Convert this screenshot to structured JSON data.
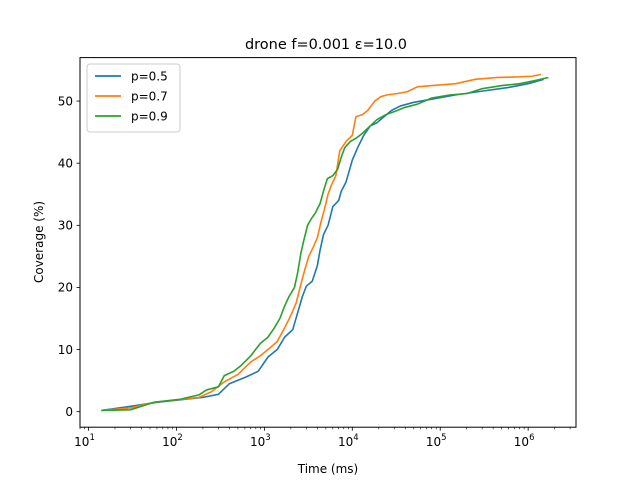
{
  "chart_data": {
    "type": "line",
    "title": "drone f=0.001 ε=10.0",
    "xlabel": "Time (ms)",
    "ylabel": "Coverage (%)",
    "xscale": "log",
    "xlim": [
      8,
      3500000
    ],
    "ylim": [
      -2.5,
      57
    ],
    "xticks": [
      {
        "value": 10,
        "base": "10",
        "exp": "1"
      },
      {
        "value": 100,
        "base": "10",
        "exp": "2"
      },
      {
        "value": 1000,
        "base": "10",
        "exp": "3"
      },
      {
        "value": 10000,
        "base": "10",
        "exp": "4"
      },
      {
        "value": 100000,
        "base": "10",
        "exp": "5"
      },
      {
        "value": 1000000,
        "base": "10",
        "exp": "6"
      }
    ],
    "yticks": [
      0,
      10,
      20,
      30,
      40,
      50
    ],
    "grid": false,
    "legend_position": "upper-left",
    "series": [
      {
        "name": "p=0.5",
        "color": "#1f77b4",
        "points": [
          [
            14,
            0.2
          ],
          [
            20,
            0.5
          ],
          [
            35,
            1.0
          ],
          [
            60,
            1.5
          ],
          [
            110,
            1.9
          ],
          [
            200,
            2.3
          ],
          [
            300,
            2.8
          ],
          [
            400,
            4.5
          ],
          [
            600,
            5.5
          ],
          [
            850,
            6.5
          ],
          [
            1100,
            8.8
          ],
          [
            1400,
            10.0
          ],
          [
            1700,
            12.0
          ],
          [
            2100,
            13.2
          ],
          [
            2400,
            16.0
          ],
          [
            2700,
            18.5
          ],
          [
            3000,
            20.2
          ],
          [
            3500,
            21.0
          ],
          [
            4000,
            23.5
          ],
          [
            4300,
            26.0
          ],
          [
            4700,
            28.5
          ],
          [
            5300,
            30.0
          ],
          [
            6000,
            33.0
          ],
          [
            7000,
            34.0
          ],
          [
            7500,
            35.5
          ],
          [
            8500,
            37.0
          ],
          [
            10000,
            40.5
          ],
          [
            11500,
            42.5
          ],
          [
            13500,
            44.5
          ],
          [
            16000,
            46.0
          ],
          [
            19000,
            46.5
          ],
          [
            23000,
            47.5
          ],
          [
            28000,
            48.5
          ],
          [
            35000,
            49.2
          ],
          [
            50000,
            49.8
          ],
          [
            80000,
            50.3
          ],
          [
            150000,
            51.0
          ],
          [
            300000,
            51.6
          ],
          [
            600000,
            52.2
          ],
          [
            1000000,
            52.8
          ],
          [
            1500000,
            53.5
          ]
        ]
      },
      {
        "name": "p=0.7",
        "color": "#ff7f0e",
        "points": [
          [
            14,
            0.2
          ],
          [
            30,
            0.6
          ],
          [
            55,
            1.5
          ],
          [
            100,
            1.9
          ],
          [
            180,
            2.3
          ],
          [
            250,
            3.2
          ],
          [
            350,
            4.8
          ],
          [
            500,
            6.0
          ],
          [
            700,
            8.0
          ],
          [
            900,
            9.0
          ],
          [
            1100,
            10.0
          ],
          [
            1400,
            11.3
          ],
          [
            1700,
            13.5
          ],
          [
            2000,
            15.5
          ],
          [
            2300,
            17.5
          ],
          [
            2600,
            20.5
          ],
          [
            2900,
            23.0
          ],
          [
            3200,
            25.0
          ],
          [
            3600,
            26.5
          ],
          [
            4000,
            28.0
          ],
          [
            4400,
            30.5
          ],
          [
            4800,
            32.5
          ],
          [
            5300,
            35.0
          ],
          [
            5800,
            36.5
          ],
          [
            6500,
            38.0
          ],
          [
            7200,
            42.0
          ],
          [
            8500,
            43.5
          ],
          [
            10000,
            44.5
          ],
          [
            11000,
            47.5
          ],
          [
            13000,
            47.8
          ],
          [
            15000,
            48.5
          ],
          [
            18000,
            50.0
          ],
          [
            21000,
            50.7
          ],
          [
            25000,
            51.0
          ],
          [
            32000,
            51.2
          ],
          [
            42000,
            51.5
          ],
          [
            55000,
            52.3
          ],
          [
            80000,
            52.5
          ],
          [
            150000,
            52.8
          ],
          [
            250000,
            53.5
          ],
          [
            450000,
            53.8
          ],
          [
            800000,
            53.9
          ],
          [
            1100000,
            54.0
          ],
          [
            1400000,
            54.3
          ]
        ]
      },
      {
        "name": "p=0.9",
        "color": "#2ca02c",
        "points": [
          [
            14,
            0.2
          ],
          [
            30,
            0.3
          ],
          [
            55,
            1.5
          ],
          [
            110,
            2.0
          ],
          [
            180,
            2.7
          ],
          [
            220,
            3.5
          ],
          [
            300,
            4.0
          ],
          [
            350,
            5.8
          ],
          [
            450,
            6.5
          ],
          [
            550,
            7.5
          ],
          [
            700,
            9.0
          ],
          [
            900,
            11.0
          ],
          [
            1100,
            12.0
          ],
          [
            1300,
            13.5
          ],
          [
            1500,
            15.0
          ],
          [
            1700,
            17.0
          ],
          [
            1900,
            18.5
          ],
          [
            2200,
            20.0
          ],
          [
            2400,
            22.5
          ],
          [
            2600,
            25.5
          ],
          [
            2800,
            27.5
          ],
          [
            3100,
            30.0
          ],
          [
            3400,
            31.0
          ],
          [
            3800,
            32.0
          ],
          [
            4300,
            33.5
          ],
          [
            4700,
            35.5
          ],
          [
            5200,
            37.5
          ],
          [
            6000,
            38.0
          ],
          [
            6800,
            39.0
          ],
          [
            7500,
            41.0
          ],
          [
            8200,
            42.5
          ],
          [
            9500,
            43.5
          ],
          [
            11000,
            44.0
          ],
          [
            13000,
            44.8
          ],
          [
            16000,
            46.0
          ],
          [
            19000,
            47.0
          ],
          [
            24000,
            47.8
          ],
          [
            30000,
            48.3
          ],
          [
            40000,
            49.0
          ],
          [
            55000,
            49.5
          ],
          [
            80000,
            50.5
          ],
          [
            130000,
            51.0
          ],
          [
            200000,
            51.2
          ],
          [
            300000,
            52.0
          ],
          [
            500000,
            52.5
          ],
          [
            800000,
            52.8
          ],
          [
            1200000,
            53.3
          ],
          [
            1700000,
            53.8
          ]
        ]
      }
    ]
  }
}
